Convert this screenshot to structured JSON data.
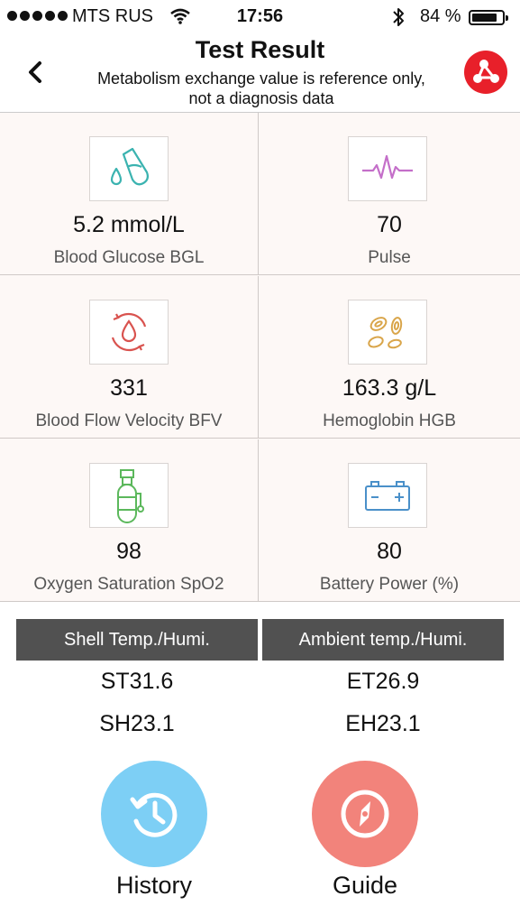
{
  "status_bar": {
    "carrier": "MTS RUS",
    "time": "17:56",
    "battery_percent": "84 %",
    "battery_level": 0.84
  },
  "header": {
    "title": "Test Result",
    "subtitle_line1": "Metabolism exchange value is reference only,",
    "subtitle_line2": "not a diagnosis data",
    "back_icon": "chevron-left-icon",
    "share_icon": "share-icon",
    "share_color": "#e8202a"
  },
  "metrics": [
    {
      "value": "5.2 mmol/L",
      "label": "Blood Glucose BGL",
      "icon": "blood-drop-test-tube-icon",
      "color": "#3bb3b0"
    },
    {
      "value": "70",
      "label": "Pulse",
      "icon": "pulse-wave-icon",
      "color": "#c46fc9"
    },
    {
      "value": "331",
      "label": "Blood Flow Velocity BFV",
      "icon": "blood-flow-cycle-icon",
      "color": "#d9534f"
    },
    {
      "value": "163.3 g/L",
      "label": "Hemoglobin HGB",
      "icon": "red-blood-cells-icon",
      "color": "#d9a54a"
    },
    {
      "value": "98",
      "label": "Oxygen Saturation SpO2",
      "icon": "oxygen-tank-icon",
      "color": "#5cb85c"
    },
    {
      "value": "80",
      "label": "Battery Power (%)",
      "icon": "battery-icon",
      "color": "#4a90c9"
    }
  ],
  "temperature": {
    "shell_header": "Shell Temp./Humi.",
    "ambient_header": "Ambient temp./Humi.",
    "shell_temp": "ST31.6",
    "shell_humi": "SH23.1",
    "ambient_temp": "ET26.9",
    "ambient_humi": "EH23.1"
  },
  "buttons": {
    "history_label": "History",
    "history_icon": "history-clock-icon",
    "history_color": "#7dcff5",
    "guide_label": "Guide",
    "guide_icon": "compass-icon",
    "guide_color": "#f2837b"
  }
}
